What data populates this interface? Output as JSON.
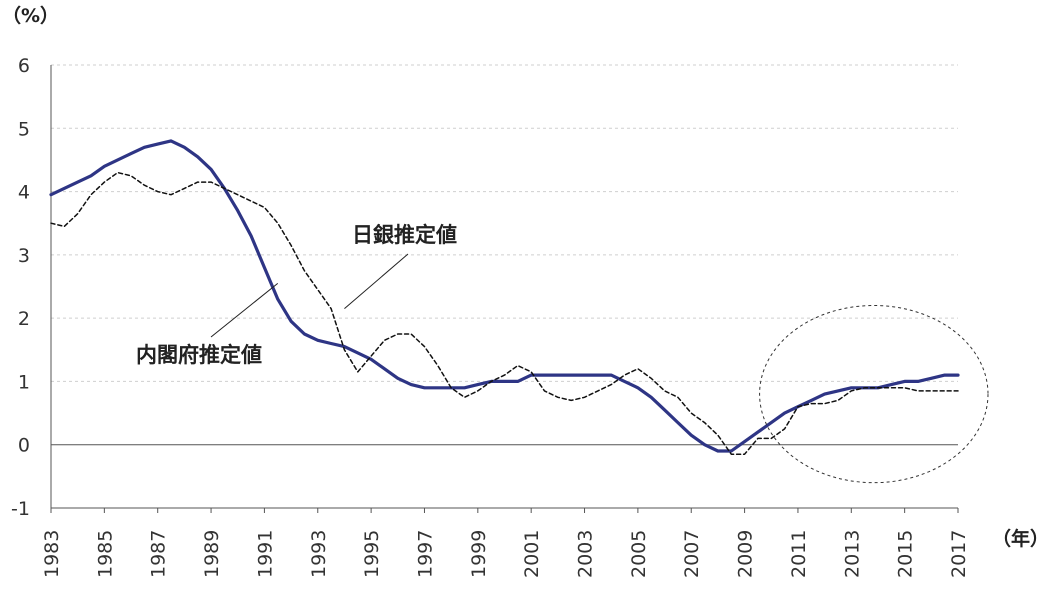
{
  "chart_data": {
    "type": "line",
    "ylabel": "（%）",
    "xlabel": "（年）",
    "ylim": [
      -1,
      6
    ],
    "yticks": [
      "6",
      "5",
      "4",
      "3",
      "2",
      "1",
      "0",
      "-1"
    ],
    "xlim": [
      1983,
      2017
    ],
    "xticks": [
      "1983",
      "1985",
      "1987",
      "1989",
      "1991",
      "1993",
      "1995",
      "1997",
      "1999",
      "2001",
      "2003",
      "2005",
      "2007",
      "2009",
      "2011",
      "2013",
      "2015",
      "2017"
    ],
    "grid": true,
    "series": [
      {
        "name": "内閣府推定値",
        "style": "solid",
        "color": "#2e3585",
        "x": [
          1983,
          1984,
          1984.5,
          1985,
          1986,
          1986.5,
          1987,
          1987.5,
          1988,
          1988.5,
          1989,
          1989.5,
          1990,
          1990.5,
          1991,
          1991.5,
          1992,
          1992.5,
          1993,
          1993.5,
          1994,
          1994.5,
          1995,
          1995.5,
          1996,
          1996.5,
          1997,
          1997.5,
          1998,
          1998.5,
          1999,
          1999.5,
          2000,
          2000.5,
          2001,
          2001.5,
          2002,
          2003,
          2004,
          2004.5,
          2005,
          2005.5,
          2006,
          2006.5,
          2007,
          2007.5,
          2008,
          2008.5,
          2009,
          2009.5,
          2010,
          2010.5,
          2011,
          2011.5,
          2012,
          2012.5,
          2013,
          2013.5,
          2014,
          2014.5,
          2015,
          2015.5,
          2016,
          2016.5,
          2017
        ],
        "y": [
          3.95,
          4.15,
          4.25,
          4.4,
          4.6,
          4.7,
          4.75,
          4.8,
          4.7,
          4.55,
          4.35,
          4.05,
          3.7,
          3.3,
          2.8,
          2.3,
          1.95,
          1.75,
          1.65,
          1.6,
          1.55,
          1.45,
          1.35,
          1.2,
          1.05,
          0.95,
          0.9,
          0.9,
          0.9,
          0.9,
          0.95,
          1.0,
          1.0,
          1.0,
          1.1,
          1.1,
          1.1,
          1.1,
          1.1,
          1.0,
          0.9,
          0.75,
          0.55,
          0.35,
          0.15,
          0.0,
          -0.1,
          -0.1,
          0.05,
          0.2,
          0.35,
          0.5,
          0.6,
          0.7,
          0.8,
          0.85,
          0.9,
          0.9,
          0.9,
          0.95,
          1.0,
          1.0,
          1.05,
          1.1,
          1.1
        ]
      },
      {
        "name": "日銀推定値",
        "style": "dashed",
        "color": "#111111",
        "x": [
          1983,
          1983.5,
          1984,
          1984.5,
          1985,
          1985.5,
          1986,
          1986.5,
          1987,
          1987.5,
          1988,
          1988.5,
          1989,
          1989.5,
          1990,
          1990.5,
          1991,
          1991.5,
          1992,
          1992.5,
          1993,
          1993.5,
          1994,
          1994.5,
          1995,
          1995.5,
          1996,
          1996.5,
          1997,
          1997.5,
          1998,
          1998.5,
          1999,
          1999.5,
          2000,
          2000.5,
          2001,
          2001.5,
          2002,
          2002.5,
          2003,
          2003.5,
          2004,
          2004.5,
          2005,
          2005.5,
          2006,
          2006.5,
          2007,
          2007.5,
          2008,
          2008.5,
          2009,
          2009.5,
          2010,
          2010.5,
          2011,
          2011.5,
          2012,
          2012.5,
          2013,
          2013.5,
          2014,
          2014.5,
          2015,
          2015.5,
          2016,
          2016.5,
          2017
        ],
        "y": [
          3.5,
          3.45,
          3.65,
          3.95,
          4.15,
          4.3,
          4.25,
          4.1,
          4.0,
          3.95,
          4.05,
          4.15,
          4.15,
          4.05,
          3.95,
          3.85,
          3.75,
          3.5,
          3.15,
          2.75,
          2.45,
          2.15,
          1.5,
          1.15,
          1.4,
          1.65,
          1.75,
          1.75,
          1.55,
          1.25,
          0.9,
          0.75,
          0.85,
          1.0,
          1.1,
          1.25,
          1.15,
          0.85,
          0.75,
          0.7,
          0.75,
          0.85,
          0.95,
          1.1,
          1.2,
          1.05,
          0.85,
          0.75,
          0.5,
          0.35,
          0.15,
          -0.15,
          -0.15,
          0.1,
          0.1,
          0.25,
          0.6,
          0.65,
          0.65,
          0.7,
          0.85,
          0.9,
          0.9,
          0.9,
          0.9,
          0.85,
          0.85,
          0.85,
          0.85
        ]
      }
    ],
    "annotations": [
      {
        "text": "日銀推定値",
        "anchor_year": 1994,
        "anchor_value": 2.15
      },
      {
        "text": "内閣府推定値",
        "anchor_year": 1991.5,
        "anchor_value": 2.55
      }
    ],
    "highlight": {
      "shape": "dashed-ellipse",
      "year_range": [
        2009,
        2017
      ],
      "value_range": [
        -0.6,
        2.2
      ]
    }
  }
}
